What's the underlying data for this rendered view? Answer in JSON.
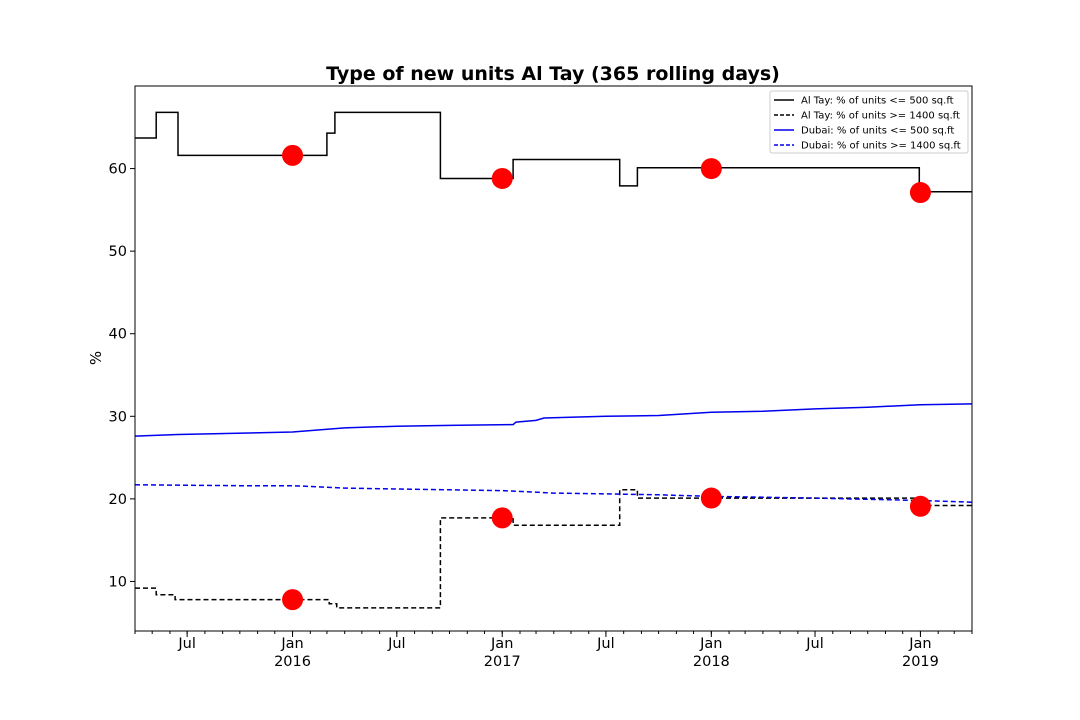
{
  "chart_data": {
    "type": "line",
    "title": "Type of new units Al Tay (365 rolling days)",
    "xlabel": "",
    "ylabel": "%",
    "xlim": [
      "2015-04-01",
      "2019-04-01"
    ],
    "ylim": [
      4,
      70
    ],
    "y_ticks": [
      10,
      20,
      30,
      40,
      50,
      60
    ],
    "x_ticks": [
      {
        "date": "2015-07-01",
        "label": "Jul",
        "sub": ""
      },
      {
        "date": "2016-01-01",
        "label": "Jan",
        "sub": "2016"
      },
      {
        "date": "2016-07-01",
        "label": "Jul",
        "sub": ""
      },
      {
        "date": "2017-01-01",
        "label": "Jan",
        "sub": "2017"
      },
      {
        "date": "2017-07-01",
        "label": "Jul",
        "sub": ""
      },
      {
        "date": "2018-01-01",
        "label": "Jan",
        "sub": "2018"
      },
      {
        "date": "2018-07-01",
        "label": "Jul",
        "sub": ""
      },
      {
        "date": "2019-01-01",
        "label": "Jan",
        "sub": "2019"
      }
    ],
    "legend_position": "top-right",
    "grid": false,
    "series": [
      {
        "name": "Al Tay: % of units <= 500 sq.ft",
        "color": "#000000",
        "dash": "solid",
        "step": true,
        "points": [
          [
            "2015-04-01",
            63.7
          ],
          [
            "2015-05-08",
            66.8
          ],
          [
            "2015-06-15",
            61.6
          ],
          [
            "2016-03-01",
            64.3
          ],
          [
            "2016-03-15",
            66.8
          ],
          [
            "2016-09-15",
            58.8
          ],
          [
            "2017-01-20",
            61.1
          ],
          [
            "2017-07-25",
            57.9
          ],
          [
            "2017-08-25",
            60.1
          ],
          [
            "2018-12-30",
            57.2
          ],
          [
            "2019-04-01",
            57.2
          ]
        ]
      },
      {
        "name": "Al Tay: % of units >= 1400 sq.ft",
        "color": "#000000",
        "dash": "dashed",
        "step": true,
        "points": [
          [
            "2015-04-01",
            9.2
          ],
          [
            "2015-05-08",
            8.4
          ],
          [
            "2015-06-10",
            7.8
          ],
          [
            "2016-03-05",
            7.3
          ],
          [
            "2016-03-18",
            6.8
          ],
          [
            "2016-09-15",
            17.7
          ],
          [
            "2017-01-20",
            16.8
          ],
          [
            "2017-07-25",
            21.1
          ],
          [
            "2017-08-25",
            20.1
          ],
          [
            "2018-12-30",
            19.2
          ],
          [
            "2019-04-01",
            19.2
          ]
        ]
      },
      {
        "name": "Dubai: % of units <= 500 sq.ft",
        "color": "#0000ee",
        "dash": "solid",
        "step": false,
        "points": [
          [
            "2015-04-01",
            27.6
          ],
          [
            "2015-06-15",
            27.8
          ],
          [
            "2016-01-01",
            28.1
          ],
          [
            "2016-04-01",
            28.6
          ],
          [
            "2016-07-01",
            28.8
          ],
          [
            "2016-10-01",
            28.9
          ],
          [
            "2017-01-20",
            29.0
          ],
          [
            "2017-01-25",
            29.3
          ],
          [
            "2017-03-01",
            29.5
          ],
          [
            "2017-03-15",
            29.8
          ],
          [
            "2017-07-01",
            30.0
          ],
          [
            "2017-10-01",
            30.1
          ],
          [
            "2018-01-01",
            30.5
          ],
          [
            "2018-04-01",
            30.6
          ],
          [
            "2018-07-01",
            30.9
          ],
          [
            "2018-10-01",
            31.1
          ],
          [
            "2019-01-01",
            31.4
          ],
          [
            "2019-04-01",
            31.5
          ]
        ]
      },
      {
        "name": "Dubai: % of units >= 1400 sq.ft",
        "color": "#0000ee",
        "dash": "dashed",
        "step": false,
        "points": [
          [
            "2015-04-01",
            21.7
          ],
          [
            "2015-10-01",
            21.6
          ],
          [
            "2016-01-01",
            21.6
          ],
          [
            "2016-04-01",
            21.3
          ],
          [
            "2016-07-01",
            21.2
          ],
          [
            "2016-10-01",
            21.1
          ],
          [
            "2017-01-01",
            21.0
          ],
          [
            "2017-04-01",
            20.7
          ],
          [
            "2017-07-01",
            20.6
          ],
          [
            "2017-10-01",
            20.5
          ],
          [
            "2018-01-01",
            20.3
          ],
          [
            "2018-07-01",
            20.1
          ],
          [
            "2019-01-01",
            19.8
          ],
          [
            "2019-04-01",
            19.6
          ]
        ]
      }
    ],
    "markers": {
      "color": "#ff0000",
      "points": [
        [
          "2016-01-01",
          61.6
        ],
        [
          "2017-01-01",
          58.8
        ],
        [
          "2018-01-01",
          60.0
        ],
        [
          "2019-01-01",
          57.1
        ],
        [
          "2016-01-01",
          7.8
        ],
        [
          "2017-01-01",
          17.7
        ],
        [
          "2018-01-01",
          20.1
        ],
        [
          "2019-01-01",
          19.1
        ]
      ]
    }
  }
}
